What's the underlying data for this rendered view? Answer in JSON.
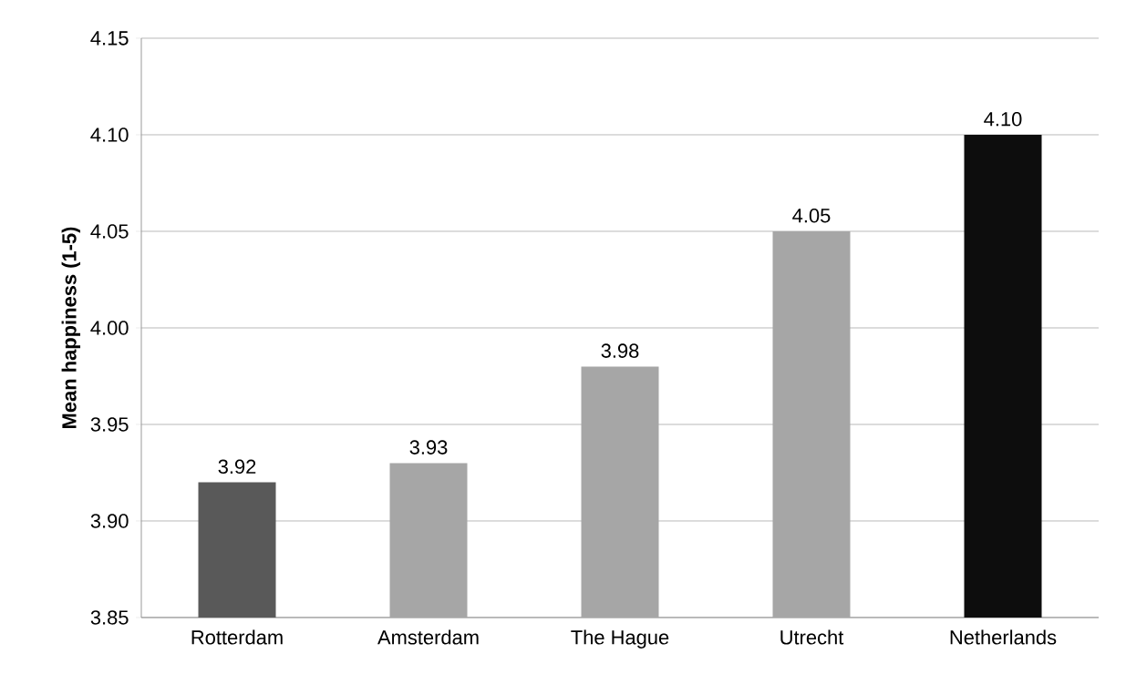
{
  "chart_data": {
    "type": "bar",
    "ylabel": "Mean happiness (1-5)",
    "categories": [
      "Rotterdam",
      "Amsterdam",
      "The Hague",
      "Utrecht",
      "Netherlands"
    ],
    "values": [
      3.92,
      3.93,
      3.98,
      4.05,
      4.1
    ],
    "colors": [
      "#595959",
      "#a6a6a6",
      "#a6a6a6",
      "#a6a6a6",
      "#0d0d0d"
    ],
    "value_labels": [
      "3.92",
      "3.93",
      "3.98",
      "4.05",
      "4.10"
    ],
    "ylim": [
      3.85,
      4.15
    ],
    "yticks": [
      {
        "value": 3.85,
        "label": "3.85"
      },
      {
        "value": 3.9,
        "label": "3.90"
      },
      {
        "value": 3.95,
        "label": "3.95"
      },
      {
        "value": 4.0,
        "label": "4.00"
      },
      {
        "value": 4.05,
        "label": "4.05"
      },
      {
        "value": 4.1,
        "label": "4.10"
      },
      {
        "value": 4.15,
        "label": "4.15"
      }
    ],
    "grid": "y"
  }
}
